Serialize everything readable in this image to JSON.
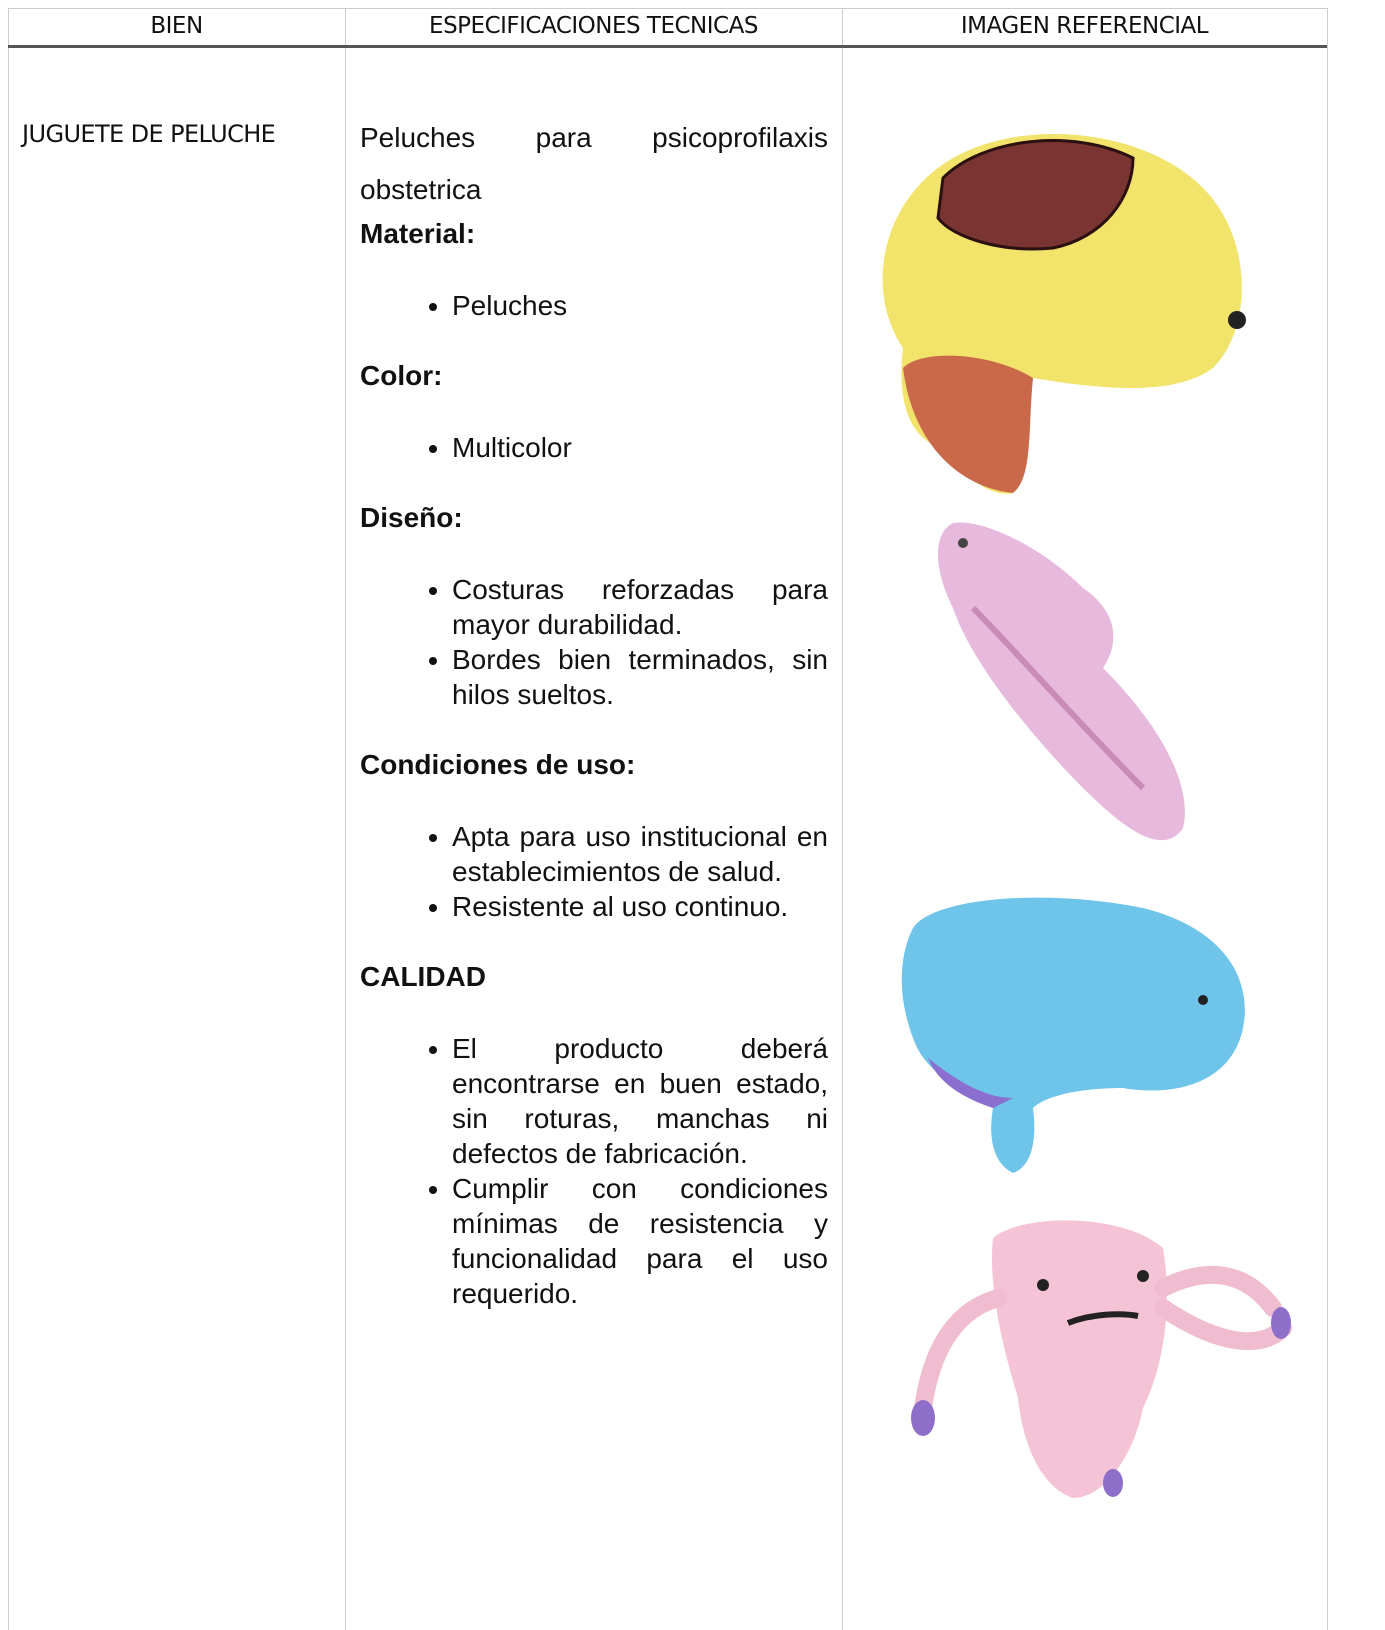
{
  "table": {
    "headers": [
      "BIEN",
      "ESPECIFICACIONES TECNICAS",
      "IMAGEN REFERENCIAL"
    ],
    "item": "JUGUETE DE PELUCHE",
    "intro": "Peluches para psicoprofilaxis obstetrica",
    "sections": [
      {
        "heading": "Material:",
        "bullets": [
          "Peluches"
        ]
      },
      {
        "heading": "Color:",
        "bullets": [
          "Multicolor"
        ]
      },
      {
        "heading": "Diseño:",
        "bullets": [
          "Costuras reforzadas para mayor durabilidad.",
          "Bordes bien terminados, sin hilos sueltos."
        ]
      },
      {
        "heading": "Condiciones de uso:",
        "bullets": [
          "Apta para uso institucional en establecimientos de salud.",
          "Resistente al uso continuo."
        ]
      },
      {
        "heading": "CALIDAD",
        "bullets": [
          "El producto deberá encontrarse en buen estado, sin roturas, manchas ni defectos de fabricación.",
          "Cumplir con condiciones mínimas de resistencia y funcionalidad para el uso requerido."
        ]
      }
    ]
  }
}
